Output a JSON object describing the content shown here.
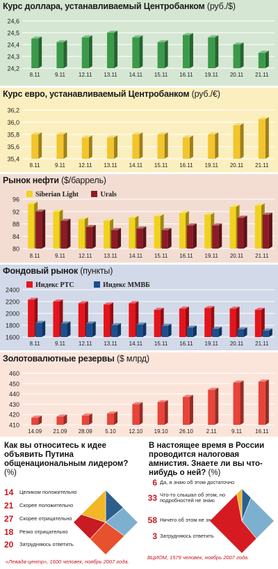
{
  "charts": [
    {
      "type": "bar",
      "title": "Курс доллара, устанавливаемый Центробанком",
      "unit": "(руб./$)",
      "bg": "#d5e7d3",
      "categories": [
        "8.11",
        "9.11",
        "12.11",
        "13.11",
        "14.11",
        "15.11",
        "16.11",
        "19.11",
        "20.11",
        "21.11"
      ],
      "series": [
        {
          "values": [
            24.45,
            24.42,
            24.46,
            24.5,
            24.46,
            24.42,
            24.48,
            24.46,
            24.4,
            24.33
          ],
          "color": "#3b9a4a"
        }
      ],
      "yticks": [
        "24,2",
        "24,3",
        "24,4",
        "24,5",
        "24,6"
      ],
      "ylim": [
        24.2,
        24.6
      ]
    },
    {
      "type": "bar",
      "title": "Курс евро, устанавливаемый Центробанком",
      "unit": "(руб./€)",
      "bg": "#fbefbf",
      "categories": [
        "8.11",
        "9.11",
        "12.11",
        "13.11",
        "14.11",
        "15.11",
        "16.11",
        "19.11",
        "20.11",
        "21.11"
      ],
      "series": [
        {
          "values": [
            35.8,
            35.8,
            35.75,
            35.75,
            35.8,
            35.8,
            35.75,
            35.8,
            35.95,
            36.05
          ],
          "color": "#f2c52d"
        }
      ],
      "yticks": [
        "35,4",
        "35,6",
        "35,8",
        "36,0",
        "36,2"
      ],
      "ylim": [
        35.4,
        36.2
      ]
    },
    {
      "type": "bar",
      "title": "Рынок нефти",
      "unit": "($/баррель)",
      "bg": "#f3ddd3",
      "categories": [
        "8.11",
        "9.11",
        "12.11",
        "13.11",
        "14.11",
        "15.11",
        "16.11",
        "19.11",
        "20.11",
        "21.11"
      ],
      "series": [
        {
          "name": "Siberian Light",
          "values": [
            94.5,
            92,
            89.5,
            89,
            90,
            90.5,
            91.5,
            91,
            93.5,
            94
          ],
          "color": "#f2d21f"
        },
        {
          "name": "Urals",
          "values": [
            92,
            89,
            87,
            86,
            86.5,
            86,
            87.5,
            87.5,
            90,
            91
          ],
          "color": "#8d1b26"
        }
      ],
      "yticks": [
        "80",
        "84",
        "88",
        "92",
        "96"
      ],
      "ylim": [
        80,
        96
      ]
    },
    {
      "type": "bar",
      "title": "Фондовый рынок",
      "unit": "(пункты)",
      "bg": "#d2d9e8",
      "categories": [
        "8.11",
        "9.11",
        "12.11",
        "13.11",
        "14.11",
        "15.11",
        "16.11",
        "19.11",
        "20.11",
        "21.11"
      ],
      "series": [
        {
          "name": "Индекс РТС",
          "values": [
            2230,
            2200,
            2170,
            2150,
            2170,
            2060,
            2080,
            2090,
            2080,
            2060
          ],
          "color": "#e5141c"
        },
        {
          "name": "Индекс ММВБ",
          "values": [
            1840,
            1830,
            1830,
            1800,
            1810,
            1790,
            1760,
            1740,
            1730,
            1710
          ],
          "color": "#1b4f8f"
        }
      ],
      "yticks": [
        "1600",
        "1800",
        "2000",
        "2200",
        "2400"
      ],
      "ylim": [
        1600,
        2400
      ]
    },
    {
      "type": "bar",
      "title": "Золотовалютные резервы",
      "unit": "($ млрд)",
      "bg": "#fbe5da",
      "categories": [
        "14.09",
        "21.09",
        "28.09",
        "5.10",
        "12.10",
        "19.10",
        "26.10",
        "2.11",
        "9.11",
        "16.11"
      ],
      "series": [
        {
          "values": [
            417,
            418,
            419,
            421,
            430,
            432,
            437,
            444,
            451,
            452
          ],
          "color": "#e8443a"
        }
      ],
      "yticks": [
        "410",
        "420",
        "430",
        "440",
        "450",
        "460"
      ],
      "ylim": [
        410,
        460
      ]
    }
  ],
  "surveys": [
    {
      "question": "Как вы относитесь к идее объявить Путина общенациональным лидером?",
      "unit": "(%)",
      "items": [
        {
          "pct": "14",
          "label": "Целиком положительно",
          "value": 14,
          "color": "#2d5f8c"
        },
        {
          "pct": "21",
          "label": "Скорее положительно",
          "value": 21,
          "color": "#7db0cf"
        },
        {
          "pct": "27",
          "label": "Скорее отрицательно",
          "value": 27,
          "color": "#e8512d"
        },
        {
          "pct": "18",
          "label": "Резко отрицательно",
          "value": 18,
          "color": "#c81b24"
        },
        {
          "pct": "20",
          "label": "Затрудняюсь ответить",
          "value": 20,
          "color": "#f3b626"
        }
      ],
      "source": "«Левада-центр», 1600 человек, ноябрь 2007 года."
    },
    {
      "question": "В настоящее время в России проводится налоговая амнистия. Знаете ли вы что-нибудь о ней?",
      "unit": "(%)",
      "items": [
        {
          "pct": "6",
          "label": "Да, я знаю об этом достаточно",
          "value": 6,
          "color": "#2d5f8c"
        },
        {
          "pct": "33",
          "label": "Что-то слышал об этом, но подробностей не знаю",
          "value": 33,
          "color": "#7db0cf"
        },
        {
          "pct": "58",
          "label": "Ничего об этом не знаю",
          "value": 58,
          "color": "#d61a22"
        },
        {
          "pct": "3",
          "label": "Затрудняюсь ответить",
          "value": 3,
          "color": "#f3b626"
        }
      ],
      "source": "ВЦИОМ, 1579 человек, ноябрь 2007 года."
    }
  ]
}
